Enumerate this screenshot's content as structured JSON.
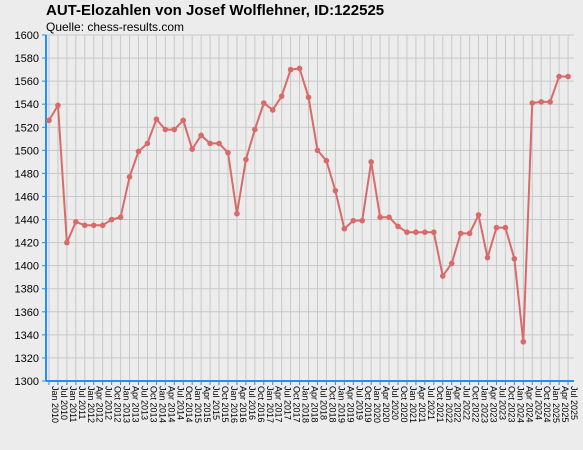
{
  "chart_data": {
    "type": "line",
    "title": "AUT-Elozahlen von Josef Wolflehner, ID:122525",
    "subtitle": "Quelle: chess-results.com",
    "xlabel": "",
    "ylabel": "",
    "ylim": [
      1300,
      1600
    ],
    "ytick_step": 20,
    "grid": true,
    "colors": {
      "background": "#ececec",
      "plot_background": "#ececec",
      "grid": "#c8c8c8",
      "axis": "#1e90ff",
      "line": "#d96a6a",
      "marker": "#d96a6a"
    },
    "x": [
      "Jan 2010",
      "Jul 2010",
      "Jan 2011",
      "Jul 2011",
      "Jan 2012",
      "Apr 2012",
      "Jul 2012",
      "Oct 2012",
      "Jan 2013",
      "Apr 2013",
      "Jul 2013",
      "Oct 2013",
      "Jan 2014",
      "Apr 2014",
      "Jul 2014",
      "Oct 2014",
      "Jan 2015",
      "Apr 2015",
      "Jul 2015",
      "Oct 2015",
      "Jan 2016",
      "Apr 2016",
      "Jul 2016",
      "Oct 2016",
      "Jan 2017",
      "Apr 2017",
      "Jul 2017",
      "Oct 2017",
      "Jan 2018",
      "Apr 2018",
      "Jul 2018",
      "Oct 2018",
      "Jan 2019",
      "Apr 2019",
      "Jul 2019",
      "Oct 2019",
      "Jan 2020",
      "Apr 2020",
      "Jul 2020",
      "Oct 2020",
      "Jan 2021",
      "Apr 2021",
      "Jul 2021",
      "Oct 2021",
      "Jan 2022",
      "Apr 2022",
      "Jul 2022",
      "Oct 2022",
      "Jan 2023",
      "Apr 2023",
      "Jul 2023",
      "Oct 2023",
      "Jan 2024",
      "Apr 2024",
      "Jul 2024",
      "Oct 2024",
      "Jan 2025",
      "Apr 2025",
      "Jul 2025"
    ],
    "values": [
      1526,
      1539,
      1420,
      1438,
      1435,
      1435,
      1435,
      1440,
      1442,
      1477,
      1499,
      1506,
      1527,
      1518,
      1518,
      1526,
      1501,
      1513,
      1506,
      1506,
      1498,
      1445,
      1492,
      1518,
      1541,
      1535,
      1547,
      1570,
      1571,
      1546,
      1500,
      1491,
      1465,
      1432,
      1439,
      1439,
      1490,
      1442,
      1442,
      1434,
      1429,
      1429,
      1429,
      1429,
      1391,
      1402,
      1428,
      1428,
      1444,
      1407,
      1433,
      1433,
      1406,
      1334,
      1541,
      1542,
      1542,
      1564,
      1564
    ]
  }
}
